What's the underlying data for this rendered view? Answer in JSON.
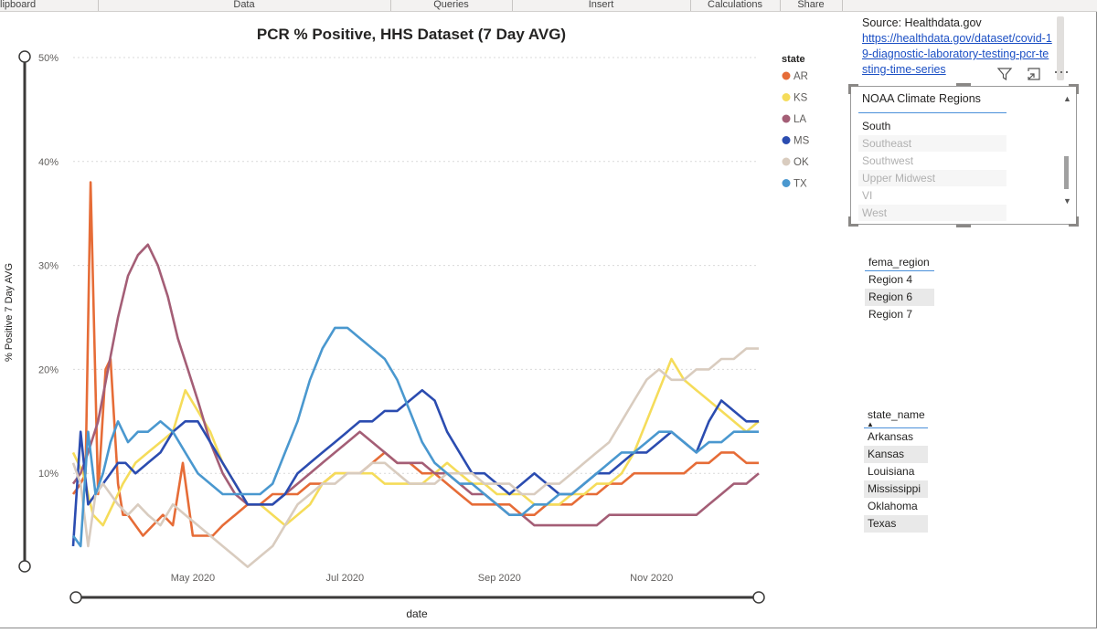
{
  "ribbon": {
    "groups": [
      "lipboard",
      "Data",
      "Queries",
      "Insert",
      "Calculations",
      "Share"
    ]
  },
  "source": {
    "label": "Source: Healthdata.gov",
    "link": "https://healthdata.gov/dataset/covid-19-diagnostic-laboratory-testing-pcr-testing-time-series"
  },
  "header_icons": {
    "filter": "filter-icon",
    "focus": "focus-mode-icon",
    "more": "more-options-icon"
  },
  "slicer": {
    "title": "NOAA Climate Regions",
    "items": [
      "South",
      "Southeast",
      "Southwest",
      "Upper Midwest",
      "VI",
      "West"
    ]
  },
  "fema_table": {
    "header": "fema_region",
    "rows": [
      "Region 4",
      "Region 6",
      "Region 7"
    ]
  },
  "state_table": {
    "header": "state_name",
    "rows": [
      "Arkansas",
      "Kansas",
      "Louisiana",
      "Mississippi",
      "Oklahoma",
      "Texas"
    ]
  },
  "chart_data": {
    "type": "line",
    "title": "PCR % Positive, HHS Dataset (7 Day AVG)",
    "xlabel": "date",
    "ylabel": "% Positive 7 Day AVG",
    "legend_title": "state",
    "legend_position": "right",
    "yticks": [
      "50%",
      "40%",
      "30%",
      "20%",
      "10%"
    ],
    "ytick_values": [
      50,
      40,
      30,
      20,
      10
    ],
    "ylim": [
      0,
      50
    ],
    "xlim": [
      0,
      275
    ],
    "xticks": [
      "May 2020",
      "Jul 2020",
      "Sep 2020",
      "Nov 2020"
    ],
    "xtick_values": [
      48,
      109,
      171,
      232
    ],
    "series": [
      {
        "name": "AR",
        "color": "#E66C37",
        "x": [
          0,
          3,
          5,
          7,
          10,
          13,
          15,
          18,
          20,
          22,
          25,
          28,
          32,
          36,
          40,
          44,
          48,
          52,
          56,
          60,
          65,
          70,
          75,
          80,
          85,
          90,
          95,
          100,
          105,
          110,
          115,
          120,
          125,
          130,
          135,
          140,
          145,
          150,
          155,
          160,
          165,
          170,
          175,
          180,
          185,
          190,
          195,
          200,
          205,
          210,
          215,
          220,
          225,
          230,
          235,
          240,
          245,
          250,
          255,
          260,
          265,
          270,
          275
        ],
        "y": [
          8,
          9,
          10,
          38,
          8,
          20,
          21,
          9,
          6,
          6,
          5,
          4,
          5,
          6,
          5,
          11,
          4,
          4,
          4,
          5,
          6,
          7,
          7,
          8,
          8,
          8,
          9,
          9,
          10,
          10,
          10,
          11,
          12,
          11,
          11,
          10,
          10,
          9,
          8,
          7,
          7,
          7,
          7,
          6,
          6,
          7,
          7,
          7,
          8,
          8,
          9,
          9,
          10,
          10,
          10,
          10,
          10,
          11,
          11,
          12,
          12,
          11,
          11
        ]
      },
      {
        "name": "KS",
        "color": "#F5DC5A",
        "x": [
          0,
          4,
          8,
          12,
          16,
          20,
          25,
          30,
          35,
          40,
          45,
          50,
          55,
          60,
          65,
          70,
          75,
          80,
          85,
          90,
          95,
          100,
          105,
          110,
          115,
          120,
          125,
          130,
          135,
          140,
          145,
          150,
          155,
          160,
          165,
          170,
          175,
          180,
          185,
          190,
          195,
          200,
          205,
          210,
          215,
          220,
          225,
          230,
          235,
          240,
          245,
          250,
          255,
          260,
          265,
          270,
          275
        ],
        "y": [
          12,
          10,
          6,
          5,
          7,
          9,
          11,
          12,
          13,
          14,
          18,
          16,
          14,
          11,
          9,
          7,
          7,
          6,
          5,
          6,
          7,
          9,
          10,
          10,
          10,
          10,
          9,
          9,
          9,
          9,
          10,
          11,
          10,
          9,
          9,
          8,
          8,
          8,
          7,
          7,
          7,
          8,
          8,
          9,
          9,
          10,
          12,
          15,
          18,
          21,
          19,
          18,
          17,
          16,
          15,
          14,
          15
        ]
      },
      {
        "name": "LA",
        "color": "#A45E76",
        "x": [
          0,
          3,
          6,
          10,
          14,
          18,
          22,
          26,
          30,
          34,
          38,
          42,
          46,
          50,
          55,
          60,
          65,
          70,
          75,
          80,
          85,
          90,
          95,
          100,
          105,
          110,
          115,
          120,
          125,
          130,
          135,
          140,
          145,
          150,
          155,
          160,
          165,
          170,
          175,
          180,
          185,
          190,
          195,
          200,
          205,
          210,
          215,
          220,
          225,
          230,
          235,
          240,
          245,
          250,
          255,
          260,
          265,
          270,
          275
        ],
        "y": [
          9,
          10,
          12,
          15,
          20,
          25,
          29,
          31,
          32,
          30,
          27,
          23,
          20,
          17,
          13,
          10,
          8,
          7,
          7,
          7,
          8,
          9,
          10,
          11,
          12,
          13,
          14,
          13,
          12,
          11,
          11,
          11,
          10,
          10,
          9,
          8,
          8,
          7,
          6,
          6,
          5,
          5,
          5,
          5,
          5,
          5,
          6,
          6,
          6,
          6,
          6,
          6,
          6,
          6,
          7,
          8,
          9,
          9,
          10
        ]
      },
      {
        "name": "MS",
        "color": "#2B4CB0",
        "x": [
          0,
          3,
          6,
          9,
          12,
          15,
          18,
          21,
          25,
          30,
          35,
          40,
          45,
          50,
          55,
          60,
          65,
          70,
          75,
          80,
          85,
          90,
          95,
          100,
          105,
          110,
          115,
          120,
          125,
          130,
          135,
          140,
          145,
          150,
          155,
          160,
          165,
          170,
          175,
          180,
          185,
          190,
          195,
          200,
          205,
          210,
          215,
          220,
          225,
          230,
          235,
          240,
          245,
          250,
          255,
          260,
          265,
          270,
          275
        ],
        "y": [
          3,
          14,
          7,
          8,
          9,
          10,
          11,
          11,
          10,
          11,
          12,
          14,
          15,
          15,
          13,
          11,
          9,
          7,
          7,
          7,
          8,
          10,
          11,
          12,
          13,
          14,
          15,
          15,
          16,
          16,
          17,
          18,
          17,
          14,
          12,
          10,
          10,
          9,
          8,
          9,
          10,
          9,
          8,
          8,
          9,
          10,
          10,
          11,
          12,
          12,
          13,
          14,
          13,
          12,
          15,
          17,
          16,
          15,
          15
        ]
      },
      {
        "name": "OK",
        "color": "#D9CCBF",
        "x": [
          0,
          3,
          6,
          9,
          12,
          15,
          18,
          22,
          26,
          30,
          35,
          40,
          45,
          50,
          55,
          60,
          65,
          70,
          75,
          80,
          85,
          90,
          95,
          100,
          105,
          110,
          115,
          120,
          125,
          130,
          135,
          140,
          145,
          150,
          155,
          160,
          165,
          170,
          175,
          180,
          185,
          190,
          195,
          200,
          205,
          210,
          215,
          220,
          225,
          230,
          235,
          240,
          245,
          250,
          255,
          260,
          265,
          270,
          275
        ],
        "y": [
          11,
          9,
          3,
          8,
          9,
          8,
          7,
          6,
          7,
          6,
          5,
          7,
          6,
          5,
          4,
          3,
          2,
          1,
          2,
          3,
          5,
          7,
          8,
          9,
          9,
          10,
          10,
          11,
          11,
          10,
          9,
          9,
          9,
          10,
          10,
          10,
          9,
          9,
          9,
          8,
          8,
          9,
          9,
          10,
          11,
          12,
          13,
          15,
          17,
          19,
          20,
          19,
          19,
          20,
          20,
          21,
          21,
          22,
          22
        ]
      },
      {
        "name": "TX",
        "color": "#4A98CF",
        "x": [
          0,
          3,
          6,
          9,
          12,
          15,
          18,
          22,
          26,
          30,
          35,
          40,
          45,
          50,
          55,
          60,
          65,
          70,
          75,
          80,
          85,
          90,
          95,
          100,
          105,
          110,
          115,
          120,
          125,
          130,
          135,
          140,
          145,
          150,
          155,
          160,
          165,
          170,
          175,
          180,
          185,
          190,
          195,
          200,
          205,
          210,
          215,
          220,
          225,
          230,
          235,
          240,
          245,
          250,
          255,
          260,
          265,
          270,
          275
        ],
        "y": [
          4,
          3,
          14,
          8,
          10,
          13,
          15,
          13,
          14,
          14,
          15,
          14,
          12,
          10,
          9,
          8,
          8,
          8,
          8,
          9,
          12,
          15,
          19,
          22,
          24,
          24,
          23,
          22,
          21,
          19,
          16,
          13,
          11,
          10,
          9,
          9,
          8,
          7,
          6,
          6,
          7,
          7,
          8,
          8,
          9,
          10,
          11,
          12,
          12,
          13,
          14,
          14,
          13,
          12,
          13,
          13,
          14,
          14,
          14
        ]
      }
    ]
  }
}
